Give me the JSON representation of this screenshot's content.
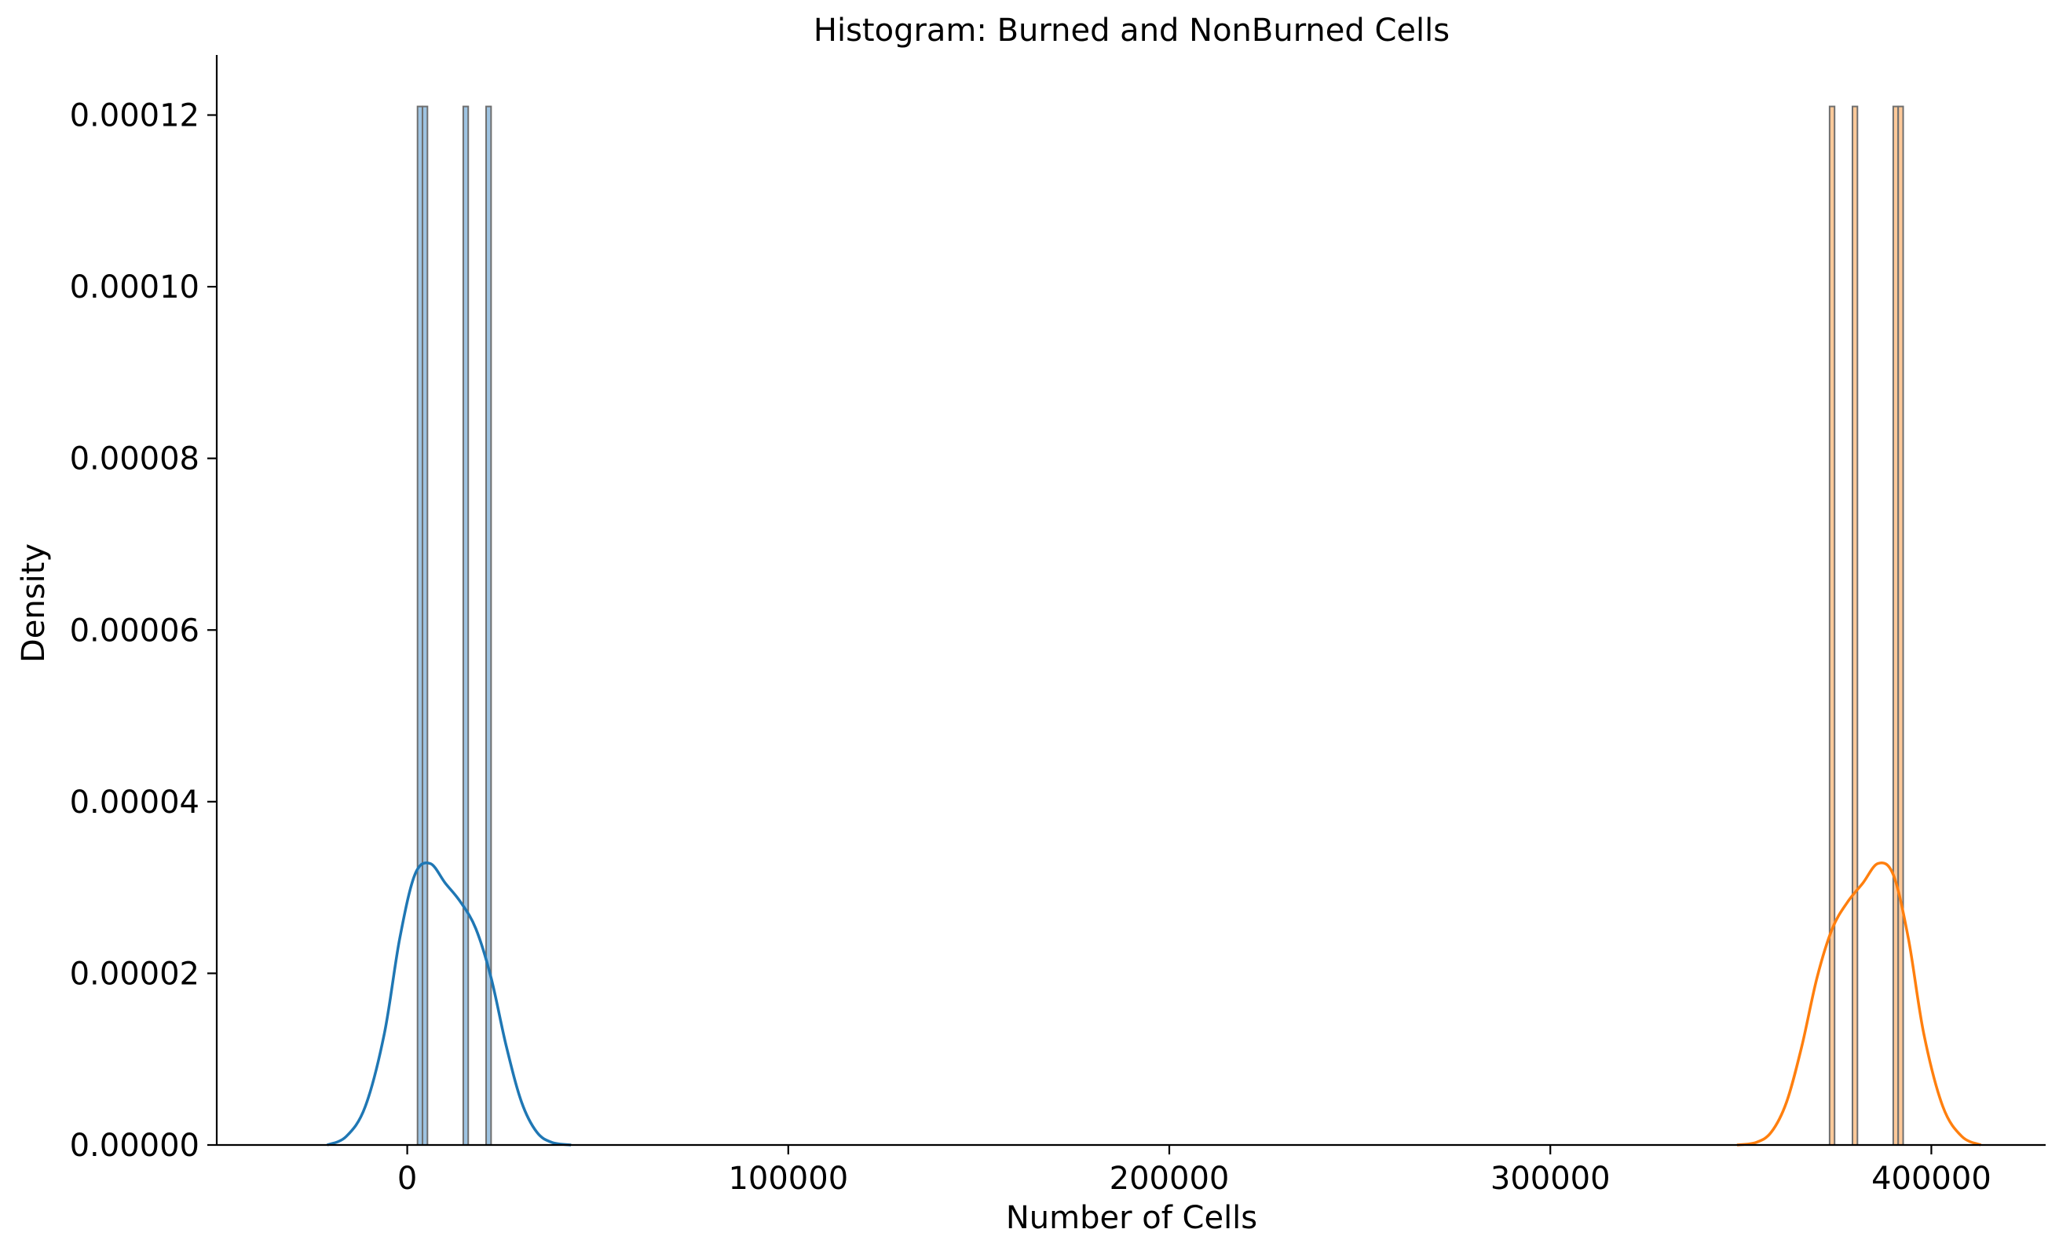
{
  "chart_data": {
    "type": "histogram",
    "title": "Histogram: Burned and NonBurned Cells",
    "xlabel": "Number of Cells",
    "ylabel": "Density",
    "xlim": [
      -50000,
      430000
    ],
    "ylim": [
      0,
      0.000127
    ],
    "xticks": [
      0,
      100000,
      200000,
      300000,
      400000
    ],
    "xtick_labels": [
      "0",
      "100000",
      "200000",
      "300000",
      "400000"
    ],
    "yticks": [
      0,
      2e-05,
      4e-05,
      6e-05,
      8e-05,
      0.0001,
      0.00012
    ],
    "ytick_labels": [
      "0.00000",
      "0.00002",
      "0.00004",
      "0.00006",
      "0.00008",
      "0.00010",
      "0.00012"
    ],
    "grid": false,
    "legend": "none",
    "series": [
      {
        "color_fill": "#9ec4e2",
        "color_line": "#1f77b4",
        "bins": [
          {
            "x0": 2700,
            "x1": 4000,
            "density": 0.000121
          },
          {
            "x0": 4000,
            "x1": 5300,
            "density": 0.000121
          },
          {
            "x0": 14700,
            "x1": 16000,
            "density": 0.000121
          },
          {
            "x0": 20700,
            "x1": 22000,
            "density": 0.000121
          }
        ],
        "kde": {
          "x": [
            -21000,
            -16000,
            -11000,
            -6000,
            -2000,
            2000,
            6000,
            10000,
            14000,
            18000,
            22000,
            26000,
            30000,
            34000,
            38000,
            43000
          ],
          "y": [
            0,
            1e-06,
            4.5e-06,
            1.3e-05,
            2.4e-05,
            3.15e-05,
            3.28e-05,
            3.05e-05,
            2.83e-05,
            2.52e-05,
            1.95e-05,
            1.15e-05,
            5e-06,
            1.5e-06,
            3e-07,
            0
          ]
        }
      },
      {
        "color_fill": "#ffc999",
        "color_line": "#ff7f0e",
        "bins": [
          {
            "x0": 373300,
            "x1": 374600,
            "density": 0.000121
          },
          {
            "x0": 379300,
            "x1": 380600,
            "density": 0.000121
          },
          {
            "x0": 390000,
            "x1": 391300,
            "density": 0.000121
          },
          {
            "x0": 391300,
            "x1": 392600,
            "density": 0.000121
          }
        ],
        "kde": {
          "x": [
            349000,
            354000,
            358000,
            362000,
            366000,
            370000,
            374000,
            378000,
            382000,
            386000,
            390000,
            394000,
            398000,
            403000,
            408000,
            413000
          ],
          "y": [
            0,
            3e-07,
            1.5e-06,
            5e-06,
            1.15e-05,
            1.95e-05,
            2.52e-05,
            2.83e-05,
            3.05e-05,
            3.28e-05,
            3.15e-05,
            2.4e-05,
            1.3e-05,
            4.5e-06,
            1e-06,
            0
          ]
        }
      }
    ]
  }
}
